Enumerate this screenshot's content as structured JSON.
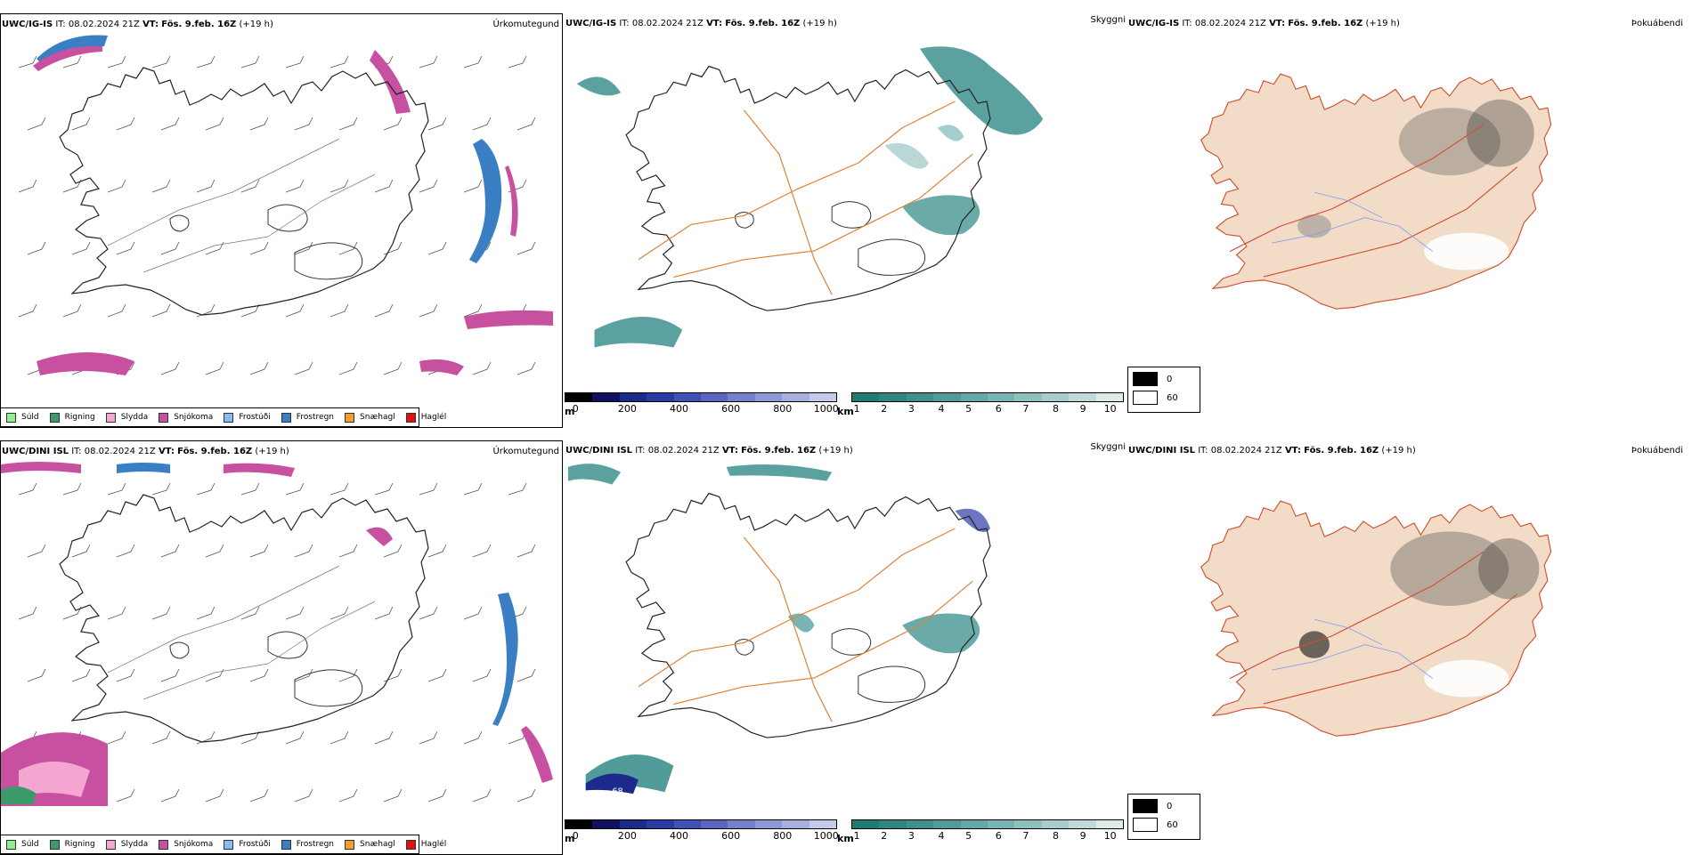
{
  "rows": [
    {
      "model": "UWC/IG-IS",
      "it_label": "IT:",
      "it_value": "08.02.2024 21Z",
      "vt_label": "VT:",
      "vt_value": "Fös. 9.feb. 16Z",
      "lead": "(+19 h)",
      "extra_label": ""
    },
    {
      "model": "UWC/DINI ISL",
      "it_label": "IT:",
      "it_value": "08.02.2024 21Z",
      "vt_label": "VT:",
      "vt_value": "Fös. 9.feb. 16Z",
      "lead": "(+19 h)",
      "extra_label": "68"
    }
  ],
  "panel_titles": {
    "precip_type": "Úrkomutegund",
    "visibility": "Skyggni",
    "fog": "Þokuábendi"
  },
  "precip_legend": [
    {
      "label": "Súld",
      "color": "#90ee90"
    },
    {
      "label": "Rigning",
      "color": "#3a9a6a"
    },
    {
      "label": "Slydda",
      "color": "#f4a6d0"
    },
    {
      "label": "Snjókoma",
      "color": "#c850a0"
    },
    {
      "label": "Frostúði",
      "color": "#88bbee"
    },
    {
      "label": "Frostregn",
      "color": "#3a7fc4"
    },
    {
      "label": "Snæhagl",
      "color": "#f0a030"
    },
    {
      "label": "Haglél",
      "color": "#e01010"
    }
  ],
  "height_scale": {
    "unit": "m",
    "ticks": [
      "0",
      "200",
      "400",
      "600",
      "800",
      "1000"
    ],
    "colors": [
      "#000000",
      "#101060",
      "#1c2a8c",
      "#2e3aa4",
      "#4050b4",
      "#5a66c0",
      "#7480cc",
      "#8e98d6",
      "#a8b0e0",
      "#c4cae8"
    ]
  },
  "distance_scale": {
    "unit": "km",
    "ticks": [
      "1",
      "2",
      "3",
      "4",
      "5",
      "6",
      "7",
      "8",
      "9",
      "10"
    ],
    "colors": [
      "#1f7a78",
      "#2e8684",
      "#3e918f",
      "#509c9a",
      "#63a8a6",
      "#78b4b2",
      "#8ec0be",
      "#a6cdcb",
      "#c0dcda",
      "#ddecea"
    ]
  },
  "fog_legend": [
    {
      "label": "0",
      "color": "#000000"
    },
    {
      "label": "60",
      "color": "#ffffff"
    }
  ],
  "colors": {
    "land_fill": "#f2dcc8",
    "road": "#e08030",
    "river": "#7f9cf0",
    "coast": "#222222"
  }
}
